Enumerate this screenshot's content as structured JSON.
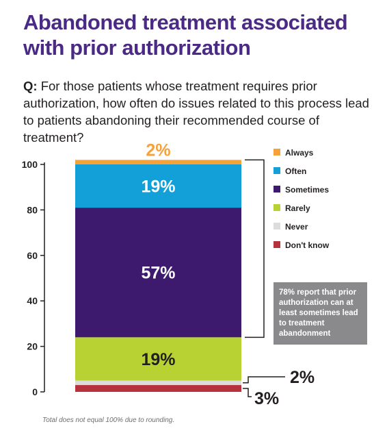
{
  "title": "Abandoned treatment associated with prior authorization",
  "question": {
    "label": "Q:",
    "text": "For those patients whose treatment requires prior authorization, how often do issues related to this process lead to patients abandoning their recommended course of treatment?"
  },
  "footnote": "Total does not equal 100% due to rounding.",
  "chart_data": {
    "type": "bar",
    "stacked": true,
    "ylim": [
      0,
      100
    ],
    "yticks": [
      "0",
      "20",
      "40",
      "60",
      "80",
      "100"
    ],
    "series": [
      {
        "name": "Don't know",
        "value": 3,
        "label": "3%",
        "color": "#b5333d"
      },
      {
        "name": "Never",
        "value": 2,
        "label": "2%",
        "color": "#dcdcdc"
      },
      {
        "name": "Rarely",
        "value": 19,
        "label": "19%",
        "color": "#b7d232"
      },
      {
        "name": "Sometimes",
        "value": 57,
        "label": "57%",
        "color": "#3d1a6e"
      },
      {
        "name": "Often",
        "value": 19,
        "label": "19%",
        "color": "#13a0d9"
      },
      {
        "name": "Always",
        "value": 2,
        "label": "2%",
        "color": "#f5a23b"
      }
    ],
    "legend_order": [
      "Always",
      "Often",
      "Sometimes",
      "Rarely",
      "Never",
      "Don't know"
    ],
    "legend_position": "right",
    "annotation": "78% report that prior authorization can at least sometimes lead to treatment abandonment"
  }
}
